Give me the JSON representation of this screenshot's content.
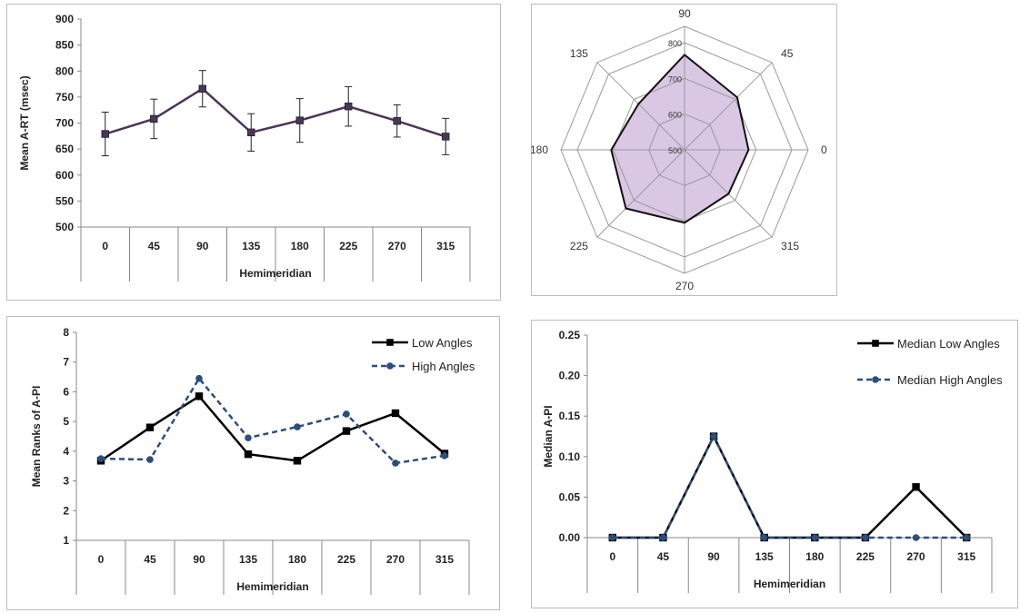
{
  "chart_data": [
    {
      "id": "mean-art",
      "type": "line",
      "categories": [
        "0",
        "45",
        "90",
        "135",
        "180",
        "225",
        "270",
        "315"
      ],
      "series": [
        {
          "values": [
            679,
            708,
            766,
            682,
            705,
            732,
            704,
            674
          ],
          "error": [
            42,
            38,
            35,
            36,
            42,
            38,
            31,
            35
          ],
          "color": "#4b3558",
          "marker": "square"
        }
      ],
      "ylim": [
        500,
        900
      ],
      "yticks": [
        "500",
        "550",
        "600",
        "650",
        "700",
        "750",
        "800",
        "850",
        "900"
      ],
      "ytick_values": [
        500,
        550,
        600,
        650,
        700,
        750,
        800,
        850,
        900
      ],
      "xlabel": "Hemimeridian",
      "ylabel": "Mean A-RT (msec)"
    },
    {
      "id": "radar-art",
      "type": "radar",
      "categories": [
        "90",
        "45",
        "0",
        "315",
        "270",
        "225",
        "180",
        "135"
      ],
      "values": [
        766,
        708,
        679,
        674,
        704,
        732,
        705,
        682
      ],
      "rlim": [
        500,
        800
      ],
      "rticks": [
        "500",
        "600",
        "700",
        "800"
      ],
      "rtick_values": [
        500,
        600,
        700,
        800
      ],
      "fill_color": "#d9c7e4",
      "line_color": "#111111"
    },
    {
      "id": "mean-ranks",
      "type": "line",
      "categories": [
        "0",
        "45",
        "90",
        "135",
        "180",
        "225",
        "270",
        "315"
      ],
      "series": [
        {
          "name": "Low Angles",
          "values": [
            3.68,
            4.8,
            5.85,
            3.9,
            3.68,
            4.68,
            5.28,
            3.92
          ],
          "color": "#000000",
          "marker": "square",
          "dash": ""
        },
        {
          "name": "High Angles",
          "values": [
            3.75,
            3.72,
            6.45,
            4.45,
            4.82,
            5.25,
            3.6,
            3.85
          ],
          "color": "#2b4f7a",
          "marker": "circle",
          "dash": "6,4"
        }
      ],
      "ylim": [
        1,
        8
      ],
      "yticks": [
        "1",
        "2",
        "3",
        "4",
        "5",
        "6",
        "7",
        "8"
      ],
      "ytick_values": [
        1,
        2,
        3,
        4,
        5,
        6,
        7,
        8
      ],
      "xlabel": "Hemimeridian",
      "ylabel": "Mean Ranks of A-PI",
      "legend": "top-right"
    },
    {
      "id": "median-api",
      "type": "line",
      "categories": [
        "0",
        "45",
        "90",
        "135",
        "180",
        "225",
        "270",
        "315"
      ],
      "series": [
        {
          "name": "Median Low Angles",
          "values": [
            0,
            0,
            0.125,
            0,
            0,
            0,
            0.0625,
            0
          ],
          "color": "#000000",
          "marker": "square",
          "dash": ""
        },
        {
          "name": "Median High Angles",
          "values": [
            0,
            0,
            0.125,
            0,
            0,
            0,
            0,
            0
          ],
          "color": "#2b4f7a",
          "marker": "circle",
          "dash": "6,4"
        }
      ],
      "ylim": [
        0,
        0.25
      ],
      "yticks": [
        "0.00",
        "0.05",
        "0.10",
        "0.15",
        "0.20",
        "0.25"
      ],
      "ytick_values": [
        0,
        0.05,
        0.1,
        0.15,
        0.2,
        0.25
      ],
      "xlabel": "Hemimeridian",
      "ylabel": "Median A-PI",
      "legend": "top-right"
    }
  ]
}
